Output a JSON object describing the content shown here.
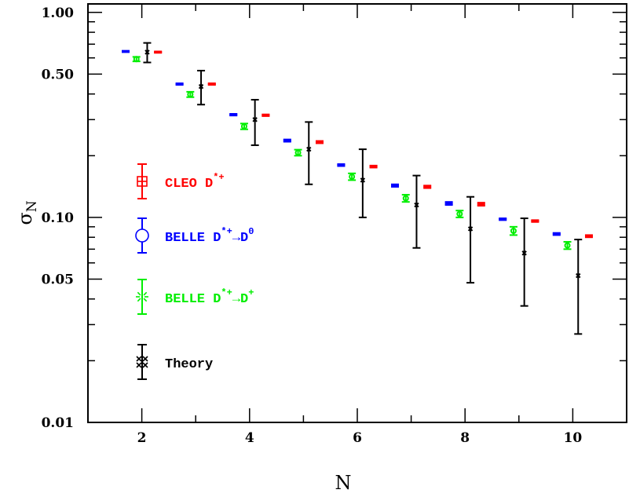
{
  "chart_data": {
    "type": "scatter",
    "title": "",
    "xlabel": "N",
    "ylabel": "σ_N",
    "ylabel_main": "σ",
    "ylabel_sub": "N",
    "y_scale": "log",
    "xlim": [
      1,
      11
    ],
    "ylim": [
      0.01,
      1.1
    ],
    "grid": false,
    "legend_placement": "left",
    "x_ticks": [
      2,
      4,
      6,
      8,
      10
    ],
    "x_tick_labels": [
      "2",
      "4",
      "6",
      "8",
      "10"
    ],
    "y_ticks": [
      0.01,
      0.05,
      0.1,
      0.5,
      1.0
    ],
    "y_tick_labels": [
      "0.01",
      "0.05",
      "0.10",
      "0.50",
      "1.00"
    ],
    "series": [
      {
        "name": "BELLE D*+→D0",
        "label_main": "BELLE  D",
        "label_sup1": "*+",
        "label_mid": "→D",
        "label_sup2": "0",
        "color": "#0000ff",
        "x_offset": -0.3,
        "x": [
          2,
          3,
          4,
          5,
          6,
          7,
          8,
          9,
          10
        ],
        "y": [
          0.645,
          0.447,
          0.317,
          0.237,
          0.18,
          0.143,
          0.117,
          0.098,
          0.083
        ],
        "err": [
          0.005,
          0.004,
          0.003,
          0.003,
          0.002,
          0.002,
          0.002,
          0.001,
          0.001
        ]
      },
      {
        "name": "BELLE D*+→D+",
        "label_main": "BELLE  D",
        "label_sup1": "*+",
        "label_mid": "→D",
        "label_sup2": "+",
        "color": "#00ee00",
        "x_offset": -0.1,
        "x": [
          2,
          3,
          4,
          5,
          6,
          7,
          8,
          9,
          10
        ],
        "y": [
          0.592,
          0.398,
          0.278,
          0.207,
          0.158,
          0.124,
          0.104,
          0.086,
          0.073
        ],
        "err": [
          0.015,
          0.012,
          0.009,
          0.007,
          0.006,
          0.005,
          0.004,
          0.004,
          0.003
        ]
      },
      {
        "name": "Theory",
        "label_main": "Theory",
        "color": "#000000",
        "x_offset": 0.1,
        "x": [
          2,
          3,
          4,
          5,
          6,
          7,
          8,
          9,
          10
        ],
        "y": [
          0.64,
          0.435,
          0.3,
          0.215,
          0.152,
          0.115,
          0.088,
          0.067,
          0.052
        ],
        "err_low": [
          0.57,
          0.355,
          0.225,
          0.145,
          0.1,
          0.071,
          0.048,
          0.037,
          0.027
        ],
        "err_high": [
          0.71,
          0.52,
          0.375,
          0.292,
          0.215,
          0.16,
          0.126,
          0.099,
          0.078
        ]
      },
      {
        "name": "CLEO D*+",
        "label_main": "CLEO D",
        "label_sup1": "*+",
        "color": "#ff0000",
        "x_offset": 0.3,
        "x": [
          2,
          3,
          4,
          5,
          6,
          7,
          8,
          9,
          10
        ],
        "y": [
          0.64,
          0.447,
          0.315,
          0.233,
          0.177,
          0.141,
          0.116,
          0.096,
          0.081
        ],
        "err": [
          0.005,
          0.004,
          0.003,
          0.003,
          0.002,
          0.002,
          0.002,
          0.001,
          0.001
        ]
      }
    ],
    "legend_order": [
      3,
      0,
      1,
      2
    ]
  }
}
